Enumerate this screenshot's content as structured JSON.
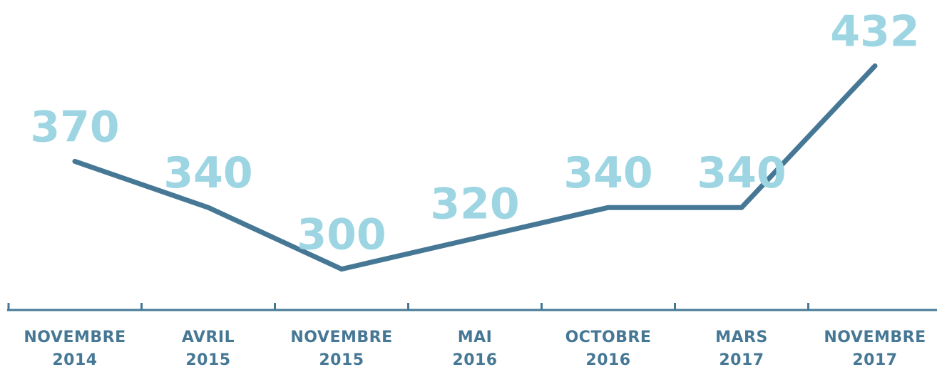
{
  "chart_data": {
    "type": "line",
    "categories": [
      "NOVEMBRE 2014",
      "AVRIL 2015",
      "NOVEMBRE 2015",
      "MAI 2016",
      "OCTOBRE 2016",
      "MARS 2017",
      "NOVEMBRE 2017"
    ],
    "series": [
      {
        "color": "#467896",
        "values": [
          370,
          340,
          300,
          320,
          340,
          340,
          432
        ]
      }
    ],
    "label_color": "#9dd5e3",
    "ylim": [
      260,
      460
    ]
  }
}
